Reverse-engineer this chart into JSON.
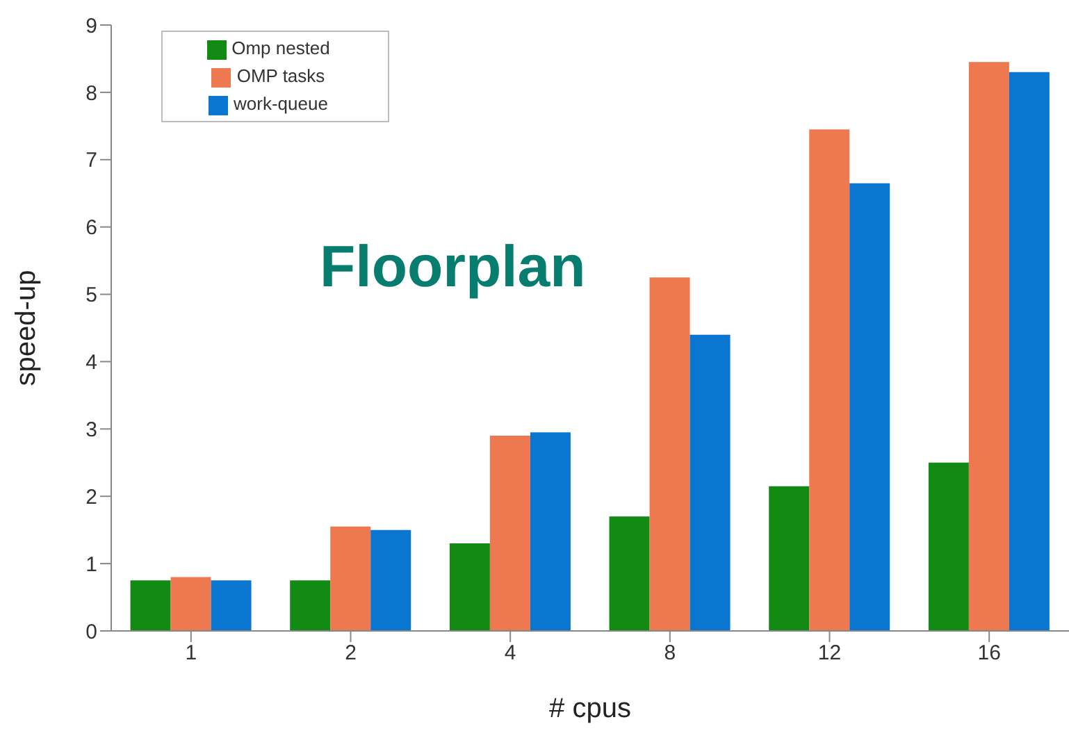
{
  "chart_data": {
    "type": "bar",
    "title": "Floorplan",
    "xlabel": "# cpus",
    "ylabel": "speed-up",
    "categories": [
      "1",
      "2",
      "4",
      "8",
      "12",
      "16"
    ],
    "series": [
      {
        "name": "Omp nested",
        "color": "#138a13",
        "values": [
          0.75,
          0.75,
          1.3,
          1.7,
          2.15,
          2.5
        ]
      },
      {
        "name": "OMP tasks",
        "color": "#ee7950",
        "values": [
          0.8,
          1.55,
          2.9,
          5.25,
          7.45,
          8.45
        ]
      },
      {
        "name": "work-queue",
        "color": "#0a76d0",
        "values": [
          0.75,
          1.5,
          2.95,
          4.4,
          6.65,
          8.3
        ]
      }
    ],
    "ylim": [
      0,
      9
    ],
    "yticks": [
      0,
      1,
      2,
      3,
      4,
      5,
      6,
      7,
      8,
      9
    ],
    "grid": false,
    "legend": "top left"
  }
}
